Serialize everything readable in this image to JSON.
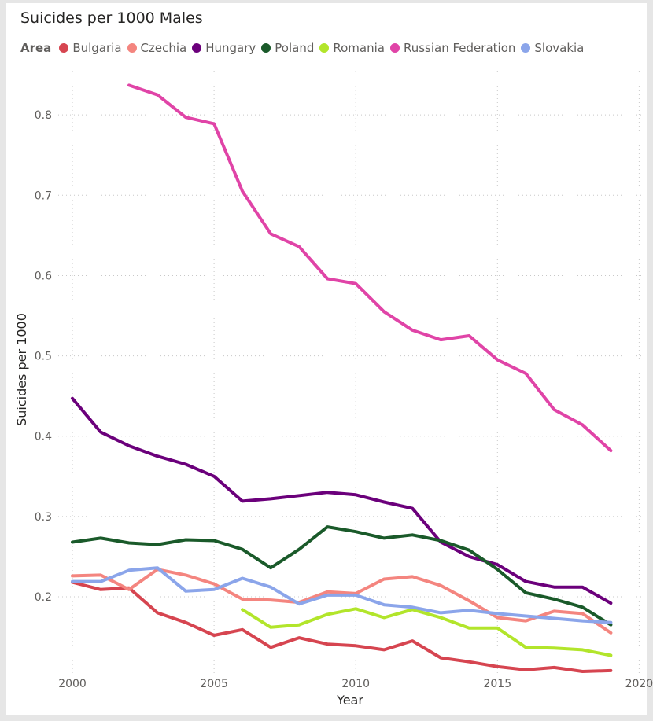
{
  "chart_data": {
    "type": "line",
    "title": "Suicides per 1000 Males",
    "xlabel": "Year",
    "ylabel": "Suicides per 1000",
    "legend_title": "Area",
    "legend_position": "top-left",
    "grid": true,
    "xlim": [
      1999.5,
      2020.1
    ],
    "ylim": [
      0.105,
      0.855
    ],
    "x_ticks": [
      2000,
      2005,
      2010,
      2015,
      2020
    ],
    "y_ticks": [
      0.2,
      0.3,
      0.4,
      0.5,
      0.6,
      0.7,
      0.8
    ],
    "series": [
      {
        "name": "Bulgaria",
        "color": "#d64550",
        "x": [
          2000,
          2001,
          2002,
          2003,
          2004,
          2005,
          2006,
          2007,
          2008,
          2009,
          2010,
          2011,
          2012,
          2013,
          2014,
          2015,
          2016,
          2017,
          2018,
          2019
        ],
        "y": [
          0.218,
          0.209,
          0.211,
          0.18,
          0.168,
          0.152,
          0.159,
          0.137,
          0.149,
          0.141,
          0.139,
          0.134,
          0.145,
          0.124,
          0.119,
          0.113,
          0.109,
          0.112,
          0.107,
          0.108
        ]
      },
      {
        "name": "Czechia",
        "color": "#f4857f",
        "x": [
          2000,
          2001,
          2002,
          2003,
          2004,
          2005,
          2006,
          2007,
          2008,
          2009,
          2010,
          2011,
          2012,
          2013,
          2014,
          2015,
          2016,
          2017,
          2018,
          2019
        ],
        "y": [
          0.226,
          0.227,
          0.209,
          0.234,
          0.227,
          0.216,
          0.197,
          0.196,
          0.193,
          0.206,
          0.204,
          0.222,
          0.225,
          0.214,
          0.195,
          0.174,
          0.17,
          0.182,
          0.179,
          0.155
        ]
      },
      {
        "name": "Hungary",
        "color": "#6b007b",
        "x": [
          2000,
          2001,
          2002,
          2003,
          2004,
          2005,
          2006,
          2007,
          2008,
          2009,
          2010,
          2011,
          2012,
          2013,
          2014,
          2015,
          2016,
          2017,
          2018,
          2019
        ],
        "y": [
          0.447,
          0.405,
          0.388,
          0.375,
          0.365,
          0.35,
          0.319,
          0.322,
          0.326,
          0.33,
          0.327,
          0.318,
          0.31,
          0.268,
          0.25,
          0.24,
          0.219,
          0.212,
          0.212,
          0.192
        ]
      },
      {
        "name": "Poland",
        "color": "#1a5a2a",
        "x": [
          2000,
          2001,
          2002,
          2003,
          2004,
          2005,
          2006,
          2007,
          2008,
          2009,
          2010,
          2011,
          2012,
          2013,
          2014,
          2015,
          2016,
          2017,
          2018,
          2019
        ],
        "y": [
          0.268,
          0.273,
          0.267,
          0.265,
          0.271,
          0.27,
          0.259,
          0.236,
          0.259,
          0.287,
          0.281,
          0.273,
          0.277,
          0.27,
          0.258,
          0.234,
          0.205,
          0.197,
          0.187,
          0.165
        ]
      },
      {
        "name": "Romania",
        "color": "#b2e52b",
        "x": [
          2006,
          2007,
          2008,
          2009,
          2010,
          2011,
          2012,
          2013,
          2014,
          2015,
          2016,
          2017,
          2018,
          2019
        ],
        "y": [
          0.184,
          0.162,
          0.165,
          0.178,
          0.185,
          0.174,
          0.184,
          0.174,
          0.161,
          0.161,
          0.137,
          0.136,
          0.134,
          0.127
        ]
      },
      {
        "name": "Russian Federation",
        "color": "#e044a7",
        "x": [
          2002,
          2003,
          2004,
          2005,
          2006,
          2007,
          2008,
          2009,
          2010,
          2011,
          2012,
          2013,
          2014,
          2015,
          2016,
          2017,
          2018,
          2019
        ],
        "y": [
          0.837,
          0.825,
          0.797,
          0.789,
          0.705,
          0.652,
          0.636,
          0.596,
          0.59,
          0.555,
          0.532,
          0.52,
          0.525,
          0.495,
          0.478,
          0.433,
          0.414,
          0.382
        ]
      },
      {
        "name": "Slovakia",
        "color": "#8ba5ea",
        "x": [
          2000,
          2001,
          2002,
          2003,
          2004,
          2005,
          2006,
          2007,
          2008,
          2009,
          2010,
          2011,
          2012,
          2013,
          2014,
          2015,
          2016,
          2017,
          2018,
          2019
        ],
        "y": [
          0.219,
          0.219,
          0.233,
          0.236,
          0.207,
          0.209,
          0.223,
          0.212,
          0.191,
          0.202,
          0.202,
          0.19,
          0.187,
          0.18,
          0.183,
          0.179,
          0.176,
          0.173,
          0.17,
          0.168
        ]
      }
    ]
  }
}
